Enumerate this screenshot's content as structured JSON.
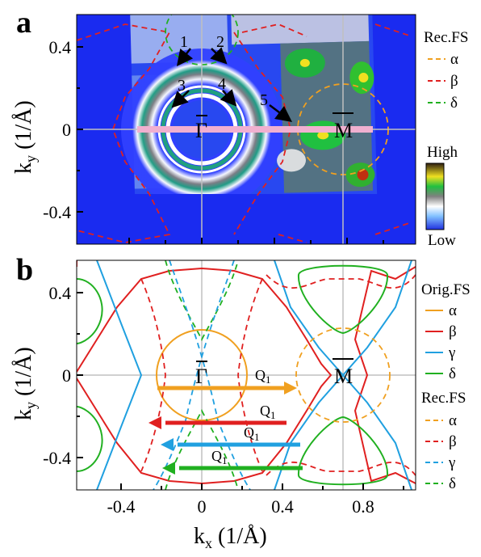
{
  "figure": {
    "panel_a": {
      "letter": "a",
      "ylabel": "k",
      "ylabel_sub": "y",
      "ylabel_unit": " (1/Å)",
      "yticks": [
        "0.4",
        "0",
        "-0.4"
      ],
      "legend": {
        "header": "Rec.FS",
        "items": [
          {
            "label": "α",
            "color": "#f0a020"
          },
          {
            "label": "β",
            "color": "#e02020"
          },
          {
            "label": "δ",
            "color": "#20b020"
          }
        ]
      },
      "colorbar": {
        "high": "High",
        "low": "Low"
      },
      "markers": [
        "1",
        "2",
        "3",
        "4",
        "5"
      ],
      "gamma_label": "Γ",
      "m_label": "M"
    },
    "panel_b": {
      "letter": "b",
      "ylabel": "k",
      "ylabel_sub": "y",
      "ylabel_unit": " (1/Å)",
      "xlabel": "k",
      "xlabel_sub": "x",
      "xlabel_unit": " (1/Å)",
      "yticks": [
        "0.4",
        "0",
        "-0.4"
      ],
      "xticks": [
        "-0.4",
        "0",
        "0.4",
        "0.8"
      ],
      "orig_legend": {
        "header": "Orig.FS",
        "items": [
          {
            "label": "α",
            "color": "#f0a020"
          },
          {
            "label": "β",
            "color": "#e02020"
          },
          {
            "label": "γ",
            "color": "#20a0e0"
          },
          {
            "label": "δ",
            "color": "#20b020"
          }
        ]
      },
      "rec_legend": {
        "header": "Rec.FS",
        "items": [
          {
            "label": "α",
            "color": "#f0a020"
          },
          {
            "label": "β",
            "color": "#e02020"
          },
          {
            "label": "γ",
            "color": "#20a0e0"
          },
          {
            "label": "δ",
            "color": "#20b020"
          }
        ]
      },
      "q_label": "Q",
      "q_sub": "1",
      "gamma_label": "Γ",
      "m_label": "M"
    }
  }
}
